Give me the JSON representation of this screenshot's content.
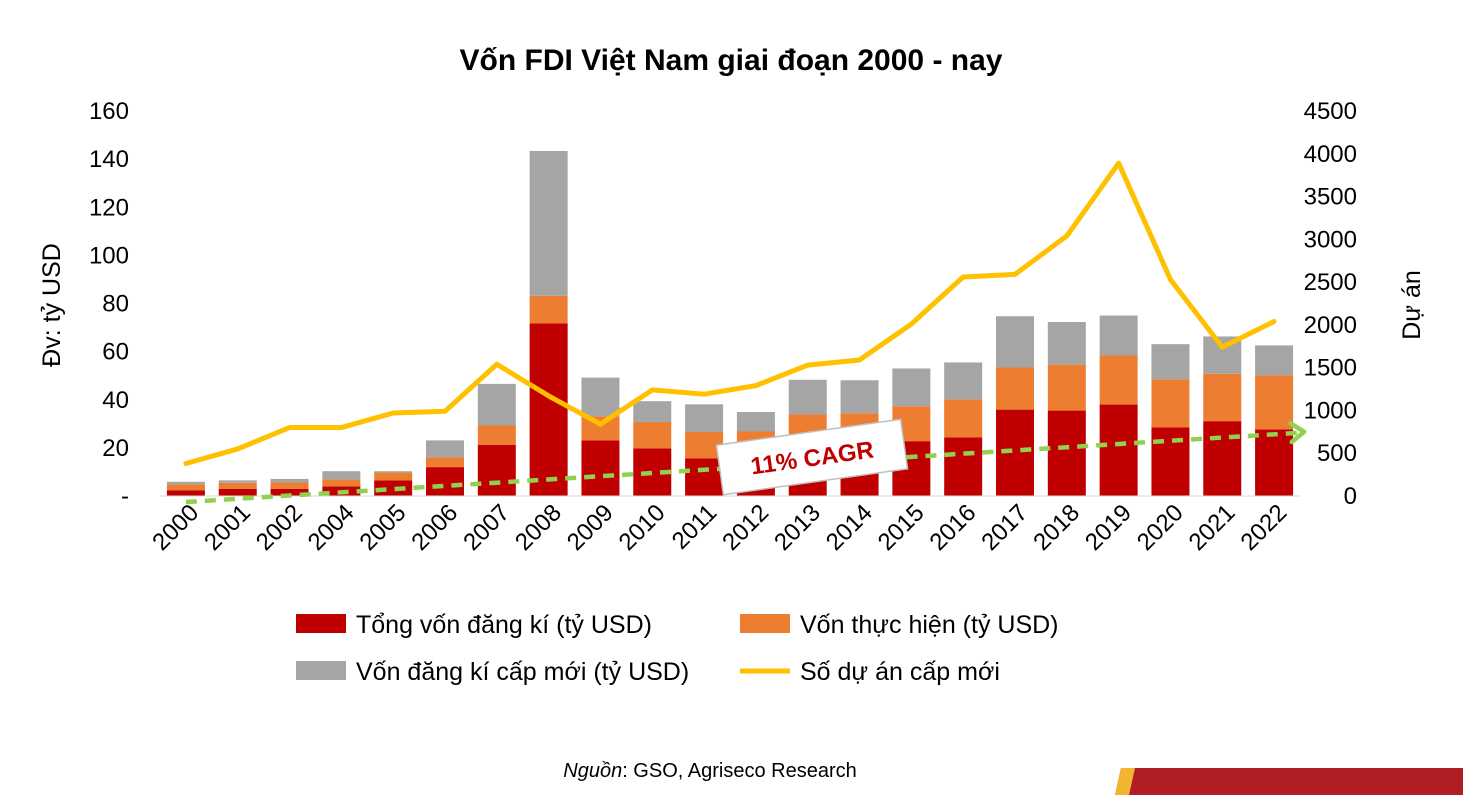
{
  "chart_data": {
    "type": "bar",
    "title": "Vốn FDI Việt Nam giai đoạn 2000 - nay",
    "categories": [
      "2000",
      "2001",
      "2002",
      "2004",
      "2005",
      "2006",
      "2007",
      "2008",
      "2009",
      "2010",
      "2011",
      "2012",
      "2013",
      "2014",
      "2015",
      "2016",
      "2017",
      "2018",
      "2019",
      "2020",
      "2021",
      "2022"
    ],
    "ylabel": "Đv: tỷ USD",
    "ylabel_right": "Dự án",
    "ylim": [
      0,
      160
    ],
    "ylim_right": [
      0,
      4500
    ],
    "yticks_left": [
      "-",
      "20",
      "40",
      "60",
      "80",
      "100",
      "120",
      "140",
      "160"
    ],
    "yticks_right": [
      "0",
      "500",
      "1000",
      "1500",
      "2000",
      "2500",
      "3000",
      "3500",
      "4000",
      "4500"
    ],
    "series": [
      {
        "name": "Tổng vốn đăng kí (tỷ USD)",
        "type": "bar-stack",
        "color": "#c00000",
        "values": [
          2.4,
          3.0,
          3.0,
          4.0,
          6.5,
          12.0,
          21.3,
          71.7,
          23.1,
          19.8,
          15.6,
          16.3,
          22.4,
          21.9,
          22.8,
          24.4,
          35.9,
          35.5,
          38.0,
          28.5,
          31.1,
          27.7
        ]
      },
      {
        "name": "Vốn thực hiện (tỷ USD)",
        "type": "bar-stack",
        "color": "#ed7d31",
        "values": [
          2.5,
          2.5,
          2.6,
          2.9,
          3.3,
          4.1,
          8.0,
          11.5,
          10.0,
          11.0,
          11.0,
          10.5,
          11.5,
          12.5,
          14.5,
          15.8,
          17.5,
          19.1,
          20.4,
          20.0,
          19.7,
          22.4
        ]
      },
      {
        "name": "Vốn đăng kí cấp mới (tỷ USD)",
        "type": "bar-stack",
        "color": "#a5a5a5",
        "values": [
          1.0,
          1.0,
          1.5,
          3.4,
          0.5,
          7.0,
          17.3,
          60.2,
          16.1,
          8.6,
          11.5,
          8.1,
          14.4,
          13.7,
          15.7,
          15.3,
          21.3,
          17.7,
          16.6,
          14.6,
          15.5,
          12.5
        ]
      },
      {
        "name": "Số dự án cấp mới",
        "type": "line",
        "color": "#ffc000",
        "values": [
          380,
          550,
          800,
          800,
          970,
          990,
          1540,
          1170,
          840,
          1240,
          1190,
          1290,
          1530,
          1590,
          2010,
          2560,
          2590,
          3040,
          3890,
          2530,
          1740,
          2040
        ]
      }
    ],
    "annotation": {
      "text": "11% CAGR",
      "trend_start": 0,
      "trend_end": 750
    }
  },
  "source": {
    "prefix": "Nguồn",
    "text": ": GSO, Agriseco Research"
  }
}
